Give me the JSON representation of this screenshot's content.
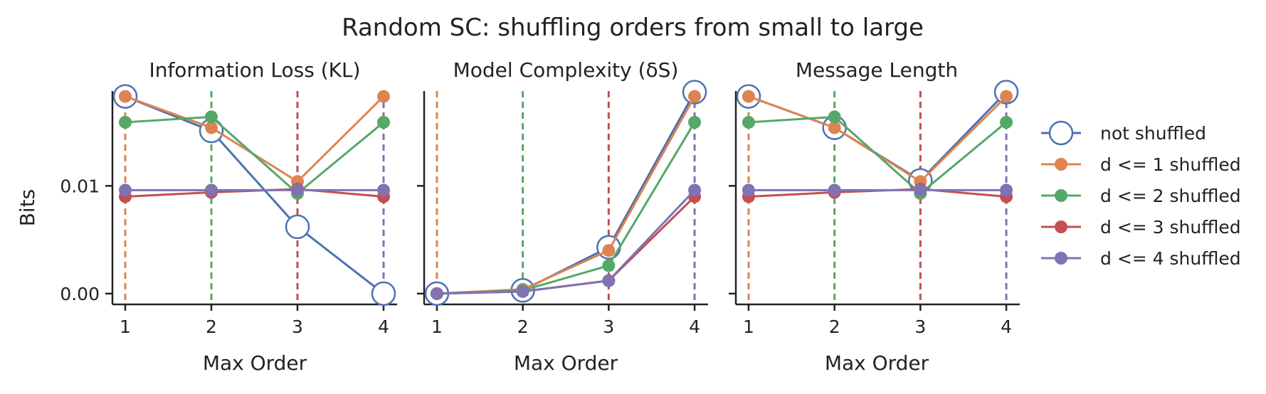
{
  "title": "Random SC: shuffling orders from small to large",
  "ylabel": "Bits",
  "legend_placement": "right",
  "colors": {
    "blue": "#4c72b0",
    "orange": "#dd8452",
    "green": "#55a868",
    "red": "#c44e52",
    "purple": "#8172b3"
  },
  "chart_data": [
    {
      "type": "line",
      "title": "Information Loss (KL)",
      "xlabel": "Max Order",
      "x": [
        1,
        2,
        3,
        4
      ],
      "xticks": [
        "1",
        "2",
        "3",
        "4"
      ],
      "yticks": [
        "0.00",
        "0.01"
      ],
      "ylim": [
        -0.001,
        0.0188
      ],
      "vlines": [
        1,
        2,
        3,
        4
      ],
      "series": [
        {
          "name": "not shuffled",
          "values": [
            0.0183,
            0.0151,
            0.0062,
            0.0
          ]
        },
        {
          "name": "d <= 1 shuffled",
          "values": [
            0.0183,
            0.0154,
            0.0104,
            0.0183
          ]
        },
        {
          "name": "d <= 2 shuffled",
          "values": [
            0.0159,
            0.0164,
            0.0093,
            0.0159
          ]
        },
        {
          "name": "d <= 3 shuffled",
          "values": [
            0.009,
            0.0094,
            0.0097,
            0.009
          ]
        },
        {
          "name": "d <= 4 shuffled",
          "values": [
            0.0096,
            0.0096,
            0.0096,
            0.0096
          ]
        }
      ]
    },
    {
      "type": "line",
      "title": "Model Complexity (δS)",
      "xlabel": "Max Order",
      "x": [
        1,
        2,
        3,
        4
      ],
      "xticks": [
        "1",
        "2",
        "3",
        "4"
      ],
      "yticks": [
        "0.00",
        "0.01"
      ],
      "ylim": [
        -0.001,
        0.0188
      ],
      "vlines": [
        1,
        2,
        3,
        4
      ],
      "series": [
        {
          "name": "not shuffled",
          "values": [
            0.0,
            0.0003,
            0.0043,
            0.0187
          ]
        },
        {
          "name": "d <= 1 shuffled",
          "values": [
            0.0,
            0.0004,
            0.004,
            0.0183
          ]
        },
        {
          "name": "d <= 2 shuffled",
          "values": [
            0.0,
            0.0003,
            0.0026,
            0.0159
          ]
        },
        {
          "name": "d <= 3 shuffled",
          "values": [
            0.0,
            0.0002,
            0.0012,
            0.009
          ]
        },
        {
          "name": "d <= 4 shuffled",
          "values": [
            0.0,
            0.0002,
            0.0012,
            0.0096
          ]
        }
      ]
    },
    {
      "type": "line",
      "title": "Message Length",
      "xlabel": "Max Order",
      "x": [
        1,
        2,
        3,
        4
      ],
      "xticks": [
        "1",
        "2",
        "3",
        "4"
      ],
      "yticks": [
        "0.00",
        "0.01"
      ],
      "ylim": [
        -0.001,
        0.0188
      ],
      "vlines": [
        1,
        2,
        3,
        4
      ],
      "series": [
        {
          "name": "not shuffled",
          "values": [
            0.0183,
            0.0154,
            0.0105,
            0.0187
          ]
        },
        {
          "name": "d <= 1 shuffled",
          "values": [
            0.0183,
            0.0154,
            0.0104,
            0.0183
          ]
        },
        {
          "name": "d <= 2 shuffled",
          "values": [
            0.0159,
            0.0164,
            0.0093,
            0.0159
          ]
        },
        {
          "name": "d <= 3 shuffled",
          "values": [
            0.009,
            0.0094,
            0.0097,
            0.009
          ]
        },
        {
          "name": "d <= 4 shuffled",
          "values": [
            0.0096,
            0.0096,
            0.0096,
            0.0096
          ]
        }
      ]
    }
  ],
  "legend": [
    {
      "label": "not shuffled",
      "color": "blue",
      "marker": "hollow-circle"
    },
    {
      "label": "d <= 1 shuffled",
      "color": "orange",
      "marker": "filled-circle"
    },
    {
      "label": "d <= 2 shuffled",
      "color": "green",
      "marker": "filled-circle"
    },
    {
      "label": "d <= 3 shuffled",
      "color": "red",
      "marker": "filled-circle"
    },
    {
      "label": "d <= 4 shuffled",
      "color": "purple",
      "marker": "filled-circle"
    }
  ]
}
